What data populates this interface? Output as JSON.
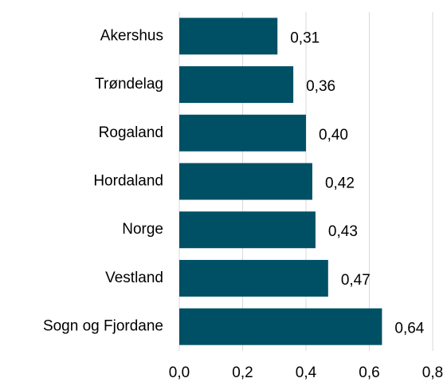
{
  "chart_data": {
    "type": "bar",
    "orientation": "horizontal",
    "categories": [
      "Akershus",
      "Trøndelag",
      "Rogaland",
      "Hordaland",
      "Norge",
      "Vestland",
      "Sogn og Fjordane"
    ],
    "values": [
      0.31,
      0.36,
      0.4,
      0.42,
      0.43,
      0.47,
      0.64
    ],
    "value_labels": [
      "0,31",
      "0,36",
      "0,40",
      "0,42",
      "0,43",
      "0,47",
      "0,64"
    ],
    "color": "#005065",
    "xlim": [
      0,
      0.8
    ],
    "xticks": [
      {
        "value": 0,
        "label": "0,0"
      },
      {
        "value": 0.2,
        "label": "0,2"
      },
      {
        "value": 0.4,
        "label": "0,4"
      },
      {
        "value": 0.6,
        "label": "0,6"
      },
      {
        "value": 0.8,
        "label": "0,8"
      }
    ],
    "grid": true
  }
}
